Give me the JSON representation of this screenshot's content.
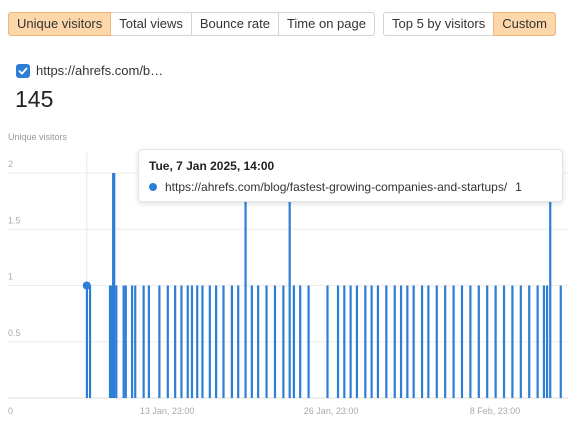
{
  "metrics": [
    {
      "label": "Unique visitors",
      "active": true
    },
    {
      "label": "Total views",
      "active": false
    },
    {
      "label": "Bounce rate",
      "active": false
    },
    {
      "label": "Time on page",
      "active": false
    }
  ],
  "modes": [
    {
      "label": "Top 5 by visitors",
      "active": false
    },
    {
      "label": "Custom",
      "active": true
    }
  ],
  "series_toggle": {
    "label": "https://ahrefs.com/b…",
    "checked": true
  },
  "total_value": "145",
  "chart_title": "Unique visitors",
  "colors": {
    "series": "#2d7ed6",
    "active_button": "#fdd7a9"
  },
  "chart_data": {
    "type": "bar",
    "title": "Unique visitors",
    "ylim": [
      0,
      2
    ],
    "y_ticks": [
      "0",
      "0.5",
      "1",
      "1.5",
      "2"
    ],
    "x_ticks": [
      "13 Jan, 23:00",
      "26 Jan, 23:00",
      "8 Feb, 23:00"
    ],
    "x_range": [
      "2025-01-01T08:00",
      "2025-02-14T18:00"
    ],
    "series": [
      {
        "name": "https://ahrefs.com/blog/fastest-growing-companies-and-startups/",
        "bars": [
          [
            "2025-01-07T14:00",
            1
          ],
          [
            "2025-01-07T20:00",
            1
          ],
          [
            "2025-01-09T10:00",
            1
          ],
          [
            "2025-01-09T12:00",
            1
          ],
          [
            "2025-01-09T14:00",
            1
          ],
          [
            "2025-01-09T16:00",
            2
          ],
          [
            "2025-01-09T18:00",
            2
          ],
          [
            "2025-01-09T22:00",
            1
          ],
          [
            "2025-01-10T12:00",
            1
          ],
          [
            "2025-01-10T16:00",
            1
          ],
          [
            "2025-01-11T04:00",
            1
          ],
          [
            "2025-01-11T10:00",
            1
          ],
          [
            "2025-01-12T02:00",
            1
          ],
          [
            "2025-01-12T12:00",
            1
          ],
          [
            "2025-01-13T08:00",
            1
          ],
          [
            "2025-01-14T00:00",
            1
          ],
          [
            "2025-01-14T14:00",
            1
          ],
          [
            "2025-01-15T02:00",
            1
          ],
          [
            "2025-01-15T14:00",
            1
          ],
          [
            "2025-01-15T22:00",
            1
          ],
          [
            "2025-01-16T08:00",
            1
          ],
          [
            "2025-01-16T18:00",
            1
          ],
          [
            "2025-01-17T08:00",
            1
          ],
          [
            "2025-01-17T20:00",
            1
          ],
          [
            "2025-01-18T10:00",
            1
          ],
          [
            "2025-01-19T02:00",
            1
          ],
          [
            "2025-01-19T14:00",
            1
          ],
          [
            "2025-01-20T04:00",
            2
          ],
          [
            "2025-01-20T16:00",
            1
          ],
          [
            "2025-01-21T04:00",
            1
          ],
          [
            "2025-01-21T20:00",
            1
          ],
          [
            "2025-01-22T12:00",
            1
          ],
          [
            "2025-01-23T04:00",
            1
          ],
          [
            "2025-01-23T16:00",
            2
          ],
          [
            "2025-01-24T00:00",
            1
          ],
          [
            "2025-01-24T12:00",
            1
          ],
          [
            "2025-01-25T04:00",
            1
          ],
          [
            "2025-01-26T16:00",
            1
          ],
          [
            "2025-01-27T12:00",
            1
          ],
          [
            "2025-01-28T00:00",
            1
          ],
          [
            "2025-01-28T12:00",
            1
          ],
          [
            "2025-01-29T00:00",
            1
          ],
          [
            "2025-01-29T16:00",
            1
          ],
          [
            "2025-01-30T04:00",
            1
          ],
          [
            "2025-01-30T16:00",
            1
          ],
          [
            "2025-01-31T08:00",
            1
          ],
          [
            "2025-02-01T00:00",
            1
          ],
          [
            "2025-02-01T12:00",
            1
          ],
          [
            "2025-02-02T00:00",
            1
          ],
          [
            "2025-02-02T12:00",
            1
          ],
          [
            "2025-02-03T04:00",
            1
          ],
          [
            "2025-02-03T16:00",
            1
          ],
          [
            "2025-02-04T08:00",
            1
          ],
          [
            "2025-02-05T00:00",
            1
          ],
          [
            "2025-02-05T16:00",
            1
          ],
          [
            "2025-02-06T08:00",
            1
          ],
          [
            "2025-02-07T00:00",
            1
          ],
          [
            "2025-02-07T16:00",
            1
          ],
          [
            "2025-02-08T08:00",
            1
          ],
          [
            "2025-02-09T00:00",
            1
          ],
          [
            "2025-02-09T16:00",
            1
          ],
          [
            "2025-02-10T08:00",
            1
          ],
          [
            "2025-02-11T00:00",
            1
          ],
          [
            "2025-02-11T16:00",
            1
          ],
          [
            "2025-02-12T08:00",
            1
          ],
          [
            "2025-02-12T20:00",
            1
          ],
          [
            "2025-02-13T02:00",
            1
          ],
          [
            "2025-02-13T08:00",
            2
          ],
          [
            "2025-02-14T04:00",
            1
          ]
        ]
      }
    ],
    "highlight": {
      "x": "2025-01-07T14:00",
      "value": 1
    }
  },
  "tooltip": {
    "title": "Tue, 7 Jan 2025, 14:00",
    "series_name": "https://ahrefs.com/blog/fastest-growing-companies-and-startups/",
    "value": "1"
  }
}
